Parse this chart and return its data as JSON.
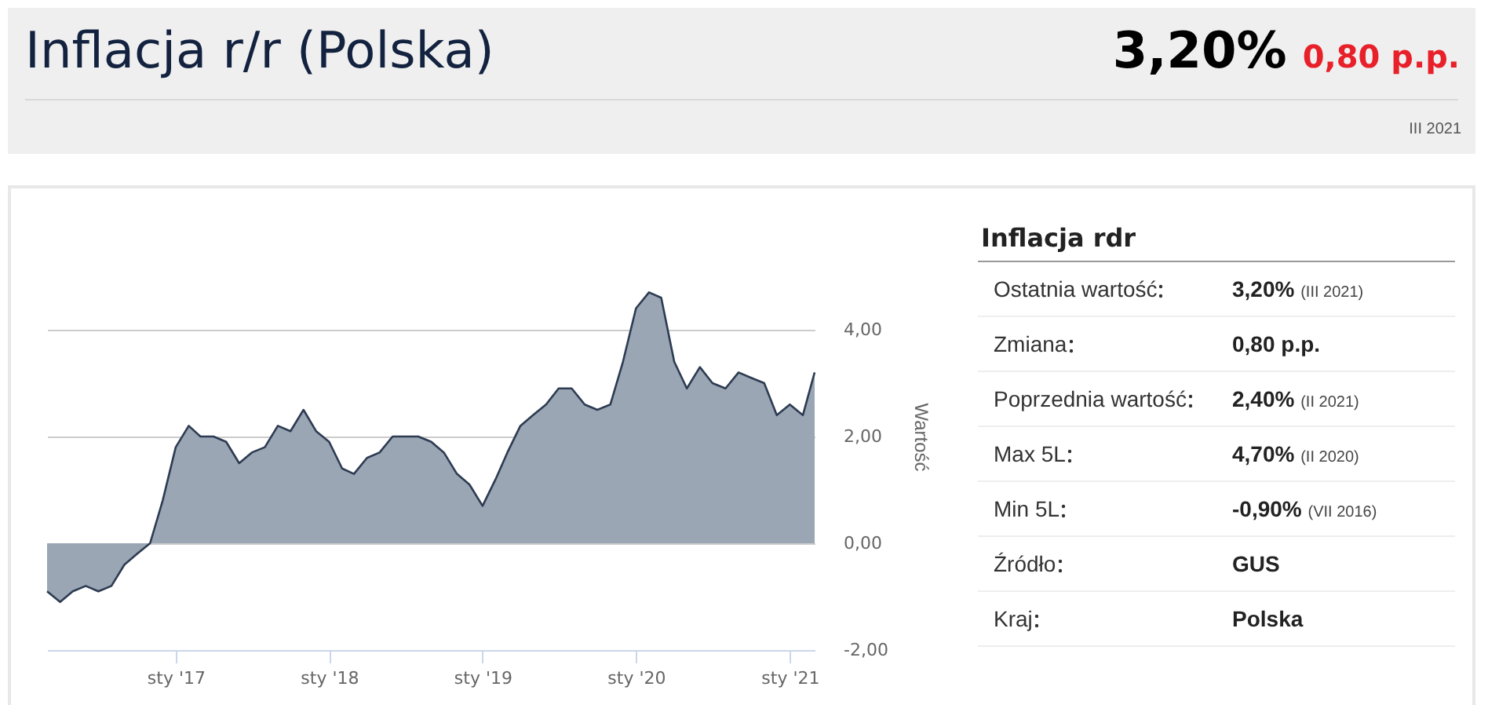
{
  "chart_data": [
    {
      "type": "area",
      "title": "Inflacja r/r (Polska)",
      "annotations": [
        "3,20%",
        "0,80 p.p.",
        "III 2021"
      ],
      "x": [
        "2016-03",
        "2016-04",
        "2016-05",
        "2016-06",
        "2016-07",
        "2016-08",
        "2016-09",
        "2016-10",
        "2016-11",
        "2016-12",
        "2017-01",
        "2017-02",
        "2017-03",
        "2017-04",
        "2017-05",
        "2017-06",
        "2017-07",
        "2017-08",
        "2017-09",
        "2017-10",
        "2017-11",
        "2017-12",
        "2018-01",
        "2018-02",
        "2018-03",
        "2018-04",
        "2018-05",
        "2018-06",
        "2018-07",
        "2018-08",
        "2018-09",
        "2018-10",
        "2018-11",
        "2018-12",
        "2019-01",
        "2019-02",
        "2019-03",
        "2019-04",
        "2019-05",
        "2019-06",
        "2019-07",
        "2019-08",
        "2019-09",
        "2019-10",
        "2019-11",
        "2019-12",
        "2020-01",
        "2020-02",
        "2020-03",
        "2020-04",
        "2020-05",
        "2020-06",
        "2020-07",
        "2020-08",
        "2020-09",
        "2020-10",
        "2020-11",
        "2020-12",
        "2021-01",
        "2021-02",
        "2021-03"
      ],
      "series": [
        {
          "color": "#9aa6b4",
          "values": [
            -0.9,
            -1.1,
            -0.9,
            -0.8,
            -0.9,
            -0.8,
            -0.4,
            -0.2,
            0.0,
            0.8,
            1.8,
            2.2,
            2.0,
            2.0,
            1.9,
            1.5,
            1.7,
            1.8,
            2.2,
            2.1,
            2.5,
            2.1,
            1.9,
            1.4,
            1.3,
            1.6,
            1.7,
            2.0,
            2.0,
            2.0,
            1.9,
            1.7,
            1.3,
            1.1,
            0.7,
            1.2,
            1.7,
            2.2,
            2.4,
            2.6,
            2.9,
            2.9,
            2.6,
            2.5,
            2.6,
            3.4,
            4.4,
            4.7,
            4.6,
            3.4,
            2.9,
            3.3,
            3.0,
            2.9,
            3.2,
            3.1,
            3.0,
            2.4,
            2.6,
            2.4,
            3.2
          ]
        }
      ],
      "xlim": [
        "2016-03",
        "2021-03"
      ],
      "xticks": [
        {
          "value": "2017-01",
          "label": "sty '17"
        },
        {
          "value": "2018-01",
          "label": "sty '18"
        },
        {
          "value": "2019-01",
          "label": "sty '19"
        },
        {
          "value": "2020-01",
          "label": "sty '20"
        },
        {
          "value": "2021-01",
          "label": "sty '21"
        }
      ],
      "ylim": [
        -2,
        6
      ],
      "yticks": [
        {
          "value": -2,
          "label": "-2,00"
        },
        {
          "value": 0,
          "label": "0,00"
        },
        {
          "value": 2,
          "label": "2,00"
        },
        {
          "value": 4,
          "label": "4,00"
        }
      ],
      "ylabel": "Wartość",
      "grid": "y"
    },
    {
      "type": "other",
      "title": "Inflacja rdr",
      "categories": [
        "Ostatnia wartość",
        "Zmiana",
        "Poprzednia wartość",
        "Max 5L",
        "Min 5L",
        "Źródło",
        "Kraj"
      ],
      "value_labels": [
        "3,20% (III 2021)",
        "0,80 p.p.",
        "2,40% (II 2021)",
        "4,70% (II 2020)",
        "-0,90% (VII 2016)",
        "GUS",
        "Polska"
      ]
    }
  ]
}
